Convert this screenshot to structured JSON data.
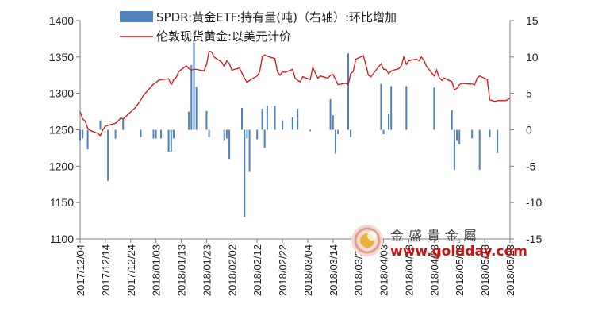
{
  "chart_data": {
    "type": "bar+line",
    "title": "",
    "legend": {
      "placement": "top",
      "entries": [
        {
          "name": "SPDR:黄金ETF:持有量(吨)（右轴）:环比增加",
          "kind": "bar",
          "color": "#4f81bd"
        },
        {
          "name": "伦敦现货黄金:以美元计价",
          "kind": "line",
          "color": "#dd1111"
        }
      ]
    },
    "left_axis": {
      "min": 1100,
      "max": 1400,
      "step": 50,
      "ticks": [
        "1400",
        "1350",
        "1300",
        "1250",
        "1200",
        "1150",
        "1100"
      ]
    },
    "right_axis": {
      "min": -15,
      "max": 15,
      "step": 5,
      "ticks": [
        "15",
        "10",
        "5",
        "0",
        "-5",
        "-10",
        "-15"
      ]
    },
    "x_axis": {
      "start": "2017/12/04",
      "end": "2018/05/23",
      "tick_labels": [
        "2017/12/04",
        "2017/12/14",
        "2017/12/24",
        "2018/01/03",
        "2018/01/13",
        "2018/01/23",
        "2018/02/02",
        "2018/02/12",
        "2018/02/22",
        "2018/03/04",
        "2018/03/14",
        "2018/03/24",
        "2018/04/03",
        "2018/04/13",
        "2018/04/23",
        "2018/05/03",
        "2018/05/13",
        "2018/05/23"
      ]
    },
    "gold_price": [
      [
        "2017/12/04",
        1275
      ],
      [
        "2017/12/05",
        1265
      ],
      [
        "2017/12/06",
        1262
      ],
      [
        "2017/12/07",
        1252
      ],
      [
        "2017/12/08",
        1249
      ],
      [
        "2017/12/11",
        1245
      ],
      [
        "2017/12/12",
        1242
      ],
      [
        "2017/12/13",
        1250
      ],
      [
        "2017/12/14",
        1255
      ],
      [
        "2017/12/15",
        1256
      ],
      [
        "2017/12/18",
        1259
      ],
      [
        "2017/12/19",
        1262
      ],
      [
        "2017/12/20",
        1266
      ],
      [
        "2017/12/21",
        1265
      ],
      [
        "2017/12/22",
        1268
      ],
      [
        "2017/12/26",
        1281
      ],
      [
        "2017/12/27",
        1286
      ],
      [
        "2017/12/28",
        1291
      ],
      [
        "2017/12/29",
        1297
      ],
      [
        "2018/01/02",
        1313
      ],
      [
        "2018/01/03",
        1315
      ],
      [
        "2018/01/04",
        1318
      ],
      [
        "2018/01/05",
        1319
      ],
      [
        "2018/01/08",
        1320
      ],
      [
        "2018/01/09",
        1312
      ],
      [
        "2018/01/10",
        1319
      ],
      [
        "2018/01/11",
        1322
      ],
      [
        "2018/01/12",
        1330
      ],
      [
        "2018/01/15",
        1338
      ],
      [
        "2018/01/16",
        1334
      ],
      [
        "2018/01/17",
        1332
      ],
      [
        "2018/01/18",
        1333
      ],
      [
        "2018/01/19",
        1333
      ],
      [
        "2018/01/22",
        1331
      ],
      [
        "2018/01/23",
        1340
      ],
      [
        "2018/01/24",
        1358
      ],
      [
        "2018/01/25",
        1357
      ],
      [
        "2018/01/26",
        1350
      ],
      [
        "2018/01/29",
        1343
      ],
      [
        "2018/01/30",
        1337
      ],
      [
        "2018/01/31",
        1345
      ],
      [
        "2018/02/01",
        1341
      ],
      [
        "2018/02/02",
        1332
      ],
      [
        "2018/02/05",
        1335
      ],
      [
        "2018/02/06",
        1328
      ],
      [
        "2018/02/07",
        1321
      ],
      [
        "2018/02/08",
        1315
      ],
      [
        "2018/02/09",
        1318
      ],
      [
        "2018/02/12",
        1324
      ],
      [
        "2018/02/13",
        1330
      ],
      [
        "2018/02/14",
        1350
      ],
      [
        "2018/02/15",
        1353
      ],
      [
        "2018/02/16",
        1351
      ],
      [
        "2018/02/19",
        1348
      ],
      [
        "2018/02/20",
        1330
      ],
      [
        "2018/02/21",
        1325
      ],
      [
        "2018/02/22",
        1330
      ],
      [
        "2018/02/23",
        1329
      ],
      [
        "2018/02/26",
        1333
      ],
      [
        "2018/02/27",
        1321
      ],
      [
        "2018/02/28",
        1318
      ],
      [
        "2018/03/01",
        1316
      ],
      [
        "2018/03/02",
        1323
      ],
      [
        "2018/03/05",
        1319
      ],
      [
        "2018/03/06",
        1336
      ],
      [
        "2018/03/07",
        1328
      ],
      [
        "2018/03/08",
        1321
      ],
      [
        "2018/03/09",
        1324
      ],
      [
        "2018/03/12",
        1321
      ],
      [
        "2018/03/13",
        1325
      ],
      [
        "2018/03/14",
        1326
      ],
      [
        "2018/03/15",
        1319
      ],
      [
        "2018/03/16",
        1312
      ],
      [
        "2018/03/19",
        1314
      ],
      [
        "2018/03/20",
        1312
      ],
      [
        "2018/03/21",
        1327
      ],
      [
        "2018/03/22",
        1330
      ],
      [
        "2018/03/23",
        1347
      ],
      [
        "2018/03/26",
        1352
      ],
      [
        "2018/03/27",
        1339
      ],
      [
        "2018/03/28",
        1325
      ],
      [
        "2018/03/29",
        1323
      ],
      [
        "2018/04/02",
        1341
      ],
      [
        "2018/04/03",
        1333
      ],
      [
        "2018/04/04",
        1333
      ],
      [
        "2018/04/05",
        1327
      ],
      [
        "2018/04/06",
        1331
      ],
      [
        "2018/04/09",
        1334
      ],
      [
        "2018/04/10",
        1338
      ],
      [
        "2018/04/11",
        1350
      ],
      [
        "2018/04/12",
        1340
      ],
      [
        "2018/04/13",
        1345
      ],
      [
        "2018/04/16",
        1347
      ],
      [
        "2018/04/17",
        1345
      ],
      [
        "2018/04/18",
        1350
      ],
      [
        "2018/04/19",
        1345
      ],
      [
        "2018/04/20",
        1337
      ],
      [
        "2018/04/23",
        1324
      ],
      [
        "2018/04/24",
        1332
      ],
      [
        "2018/04/25",
        1322
      ],
      [
        "2018/04/26",
        1318
      ],
      [
        "2018/04/27",
        1321
      ],
      [
        "2018/04/30",
        1316
      ],
      [
        "2018/05/01",
        1305
      ],
      [
        "2018/05/02",
        1307
      ],
      [
        "2018/05/03",
        1312
      ],
      [
        "2018/05/04",
        1314
      ],
      [
        "2018/05/07",
        1313
      ],
      [
        "2018/05/08",
        1313
      ],
      [
        "2018/05/09",
        1312
      ],
      [
        "2018/05/10",
        1321
      ],
      [
        "2018/05/11",
        1324
      ],
      [
        "2018/05/14",
        1319
      ],
      [
        "2018/05/15",
        1291
      ],
      [
        "2018/05/16",
        1290
      ],
      [
        "2018/05/17",
        1289
      ],
      [
        "2018/05/18",
        1290
      ],
      [
        "2018/05/21",
        1290
      ],
      [
        "2018/05/22",
        1291
      ],
      [
        "2018/05/23",
        1294
      ]
    ],
    "etf_change": [
      [
        "2017/12/04",
        -1.5
      ],
      [
        "2017/12/05",
        -1.2
      ],
      [
        "2017/12/07",
        -2.7
      ],
      [
        "2017/12/12",
        1.3
      ],
      [
        "2017/12/15",
        -7.0
      ],
      [
        "2017/12/18",
        -1.2
      ],
      [
        "2017/12/21",
        1.5
      ],
      [
        "2017/12/28",
        -1.0
      ],
      [
        "2018/01/02",
        -1.2
      ],
      [
        "2018/01/03",
        -1.2
      ],
      [
        "2018/01/05",
        -1.2
      ],
      [
        "2018/01/08",
        -3.0
      ],
      [
        "2018/01/09",
        -3.0
      ],
      [
        "2018/01/10",
        -1.2
      ],
      [
        "2018/01/16",
        2.5
      ],
      [
        "2018/01/17",
        8.9
      ],
      [
        "2018/01/18",
        12.0
      ],
      [
        "2018/01/19",
        5.9
      ],
      [
        "2018/01/23",
        2.6
      ],
      [
        "2018/01/24",
        -1.0
      ],
      [
        "2018/01/30",
        -1.5
      ],
      [
        "2018/01/31",
        -1.2
      ],
      [
        "2018/02/01",
        -4.0
      ],
      [
        "2018/02/06",
        3.0
      ],
      [
        "2018/02/07",
        -12.0
      ],
      [
        "2018/02/08",
        -1.2
      ],
      [
        "2018/02/09",
        -5.8
      ],
      [
        "2018/02/12",
        -1.3
      ],
      [
        "2018/02/14",
        2.9
      ],
      [
        "2018/02/15",
        -2.5
      ],
      [
        "2018/02/16",
        3.3
      ],
      [
        "2018/02/19",
        3.3
      ],
      [
        "2018/02/22",
        1.3
      ],
      [
        "2018/02/26",
        1.7
      ],
      [
        "2018/02/28",
        2.9
      ],
      [
        "2018/03/05",
        -0.2
      ],
      [
        "2018/03/13",
        4.2
      ],
      [
        "2018/03/14",
        2.0
      ],
      [
        "2018/03/15",
        -3.3
      ],
      [
        "2018/03/16",
        -0.6
      ],
      [
        "2018/03/20",
        10.5
      ],
      [
        "2018/03/21",
        -1.0
      ],
      [
        "2018/04/02",
        6.3
      ],
      [
        "2018/04/03",
        -0.6
      ],
      [
        "2018/04/05",
        2.2
      ],
      [
        "2018/04/06",
        6.0
      ],
      [
        "2018/04/12",
        6.0
      ],
      [
        "2018/04/23",
        5.8
      ],
      [
        "2018/04/30",
        2.7
      ],
      [
        "2018/05/01",
        -5.5
      ],
      [
        "2018/05/02",
        -1.5
      ],
      [
        "2018/05/03",
        -2.0
      ],
      [
        "2018/05/08",
        -1.2
      ],
      [
        "2018/05/11",
        -5.5
      ],
      [
        "2018/05/15",
        -1.0
      ],
      [
        "2018/05/18",
        -3.2
      ]
    ]
  },
  "watermark": {
    "name": "金盛貴金屬",
    "url": "www.goldday.com",
    "logo_letter": "G"
  }
}
